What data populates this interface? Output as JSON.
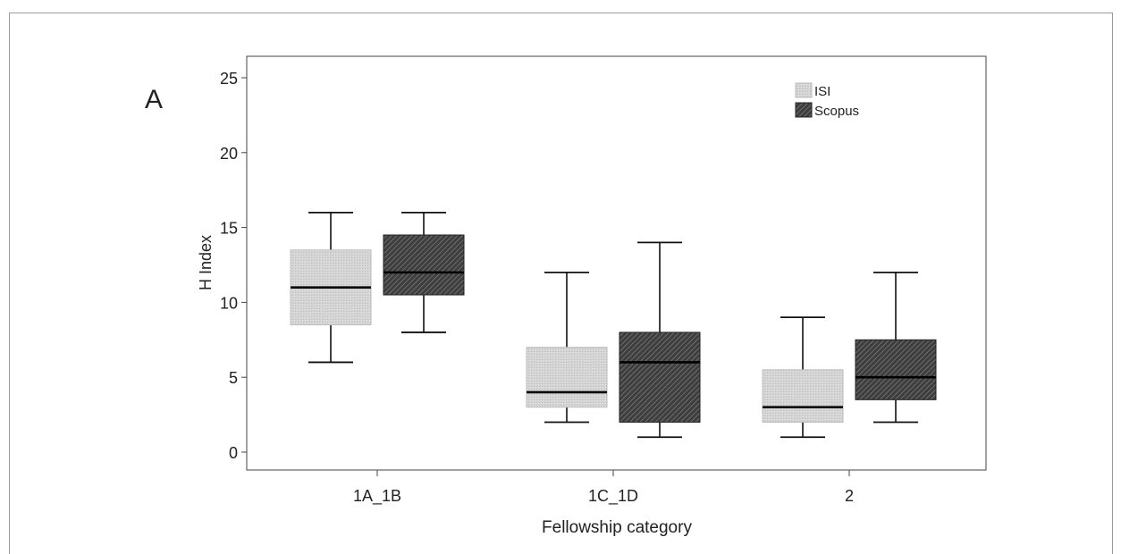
{
  "figure": {
    "panel_label": "A"
  },
  "chart_data": {
    "type": "boxplot",
    "xlabel": "Fellowship category",
    "ylabel": "H Index",
    "ylim": [
      -1.2,
      25.5
    ],
    "yticks": [
      0,
      5,
      10,
      15,
      20,
      25
    ],
    "ytick_labels": [
      "0",
      "5",
      "10",
      "15",
      "20",
      "25"
    ],
    "categories": [
      "1A_1B",
      "1C_1D",
      "2"
    ],
    "legend_position": "top-right",
    "grid": false,
    "series": [
      {
        "name": "ISI",
        "fill": "light-gray-stipple",
        "color": "#cfcfcf",
        "boxes": [
          {
            "min": 6,
            "q1": 8.5,
            "median": 11,
            "q3": 13.5,
            "max": 16
          },
          {
            "min": 2,
            "q1": 3,
            "median": 4,
            "q3": 7,
            "max": 12
          },
          {
            "min": 1,
            "q1": 2,
            "median": 3,
            "q3": 5.5,
            "max": 9
          }
        ]
      },
      {
        "name": "Scopus",
        "fill": "dark-gray-hatch",
        "color": "#4a4a4a",
        "boxes": [
          {
            "min": 8,
            "q1": 10.5,
            "median": 12,
            "q3": 14.5,
            "max": 16
          },
          {
            "min": 1,
            "q1": 2,
            "median": 6,
            "q3": 8,
            "max": 14
          },
          {
            "min": 2,
            "q1": 3.5,
            "median": 5,
            "q3": 7.5,
            "max": 12
          }
        ]
      }
    ]
  }
}
